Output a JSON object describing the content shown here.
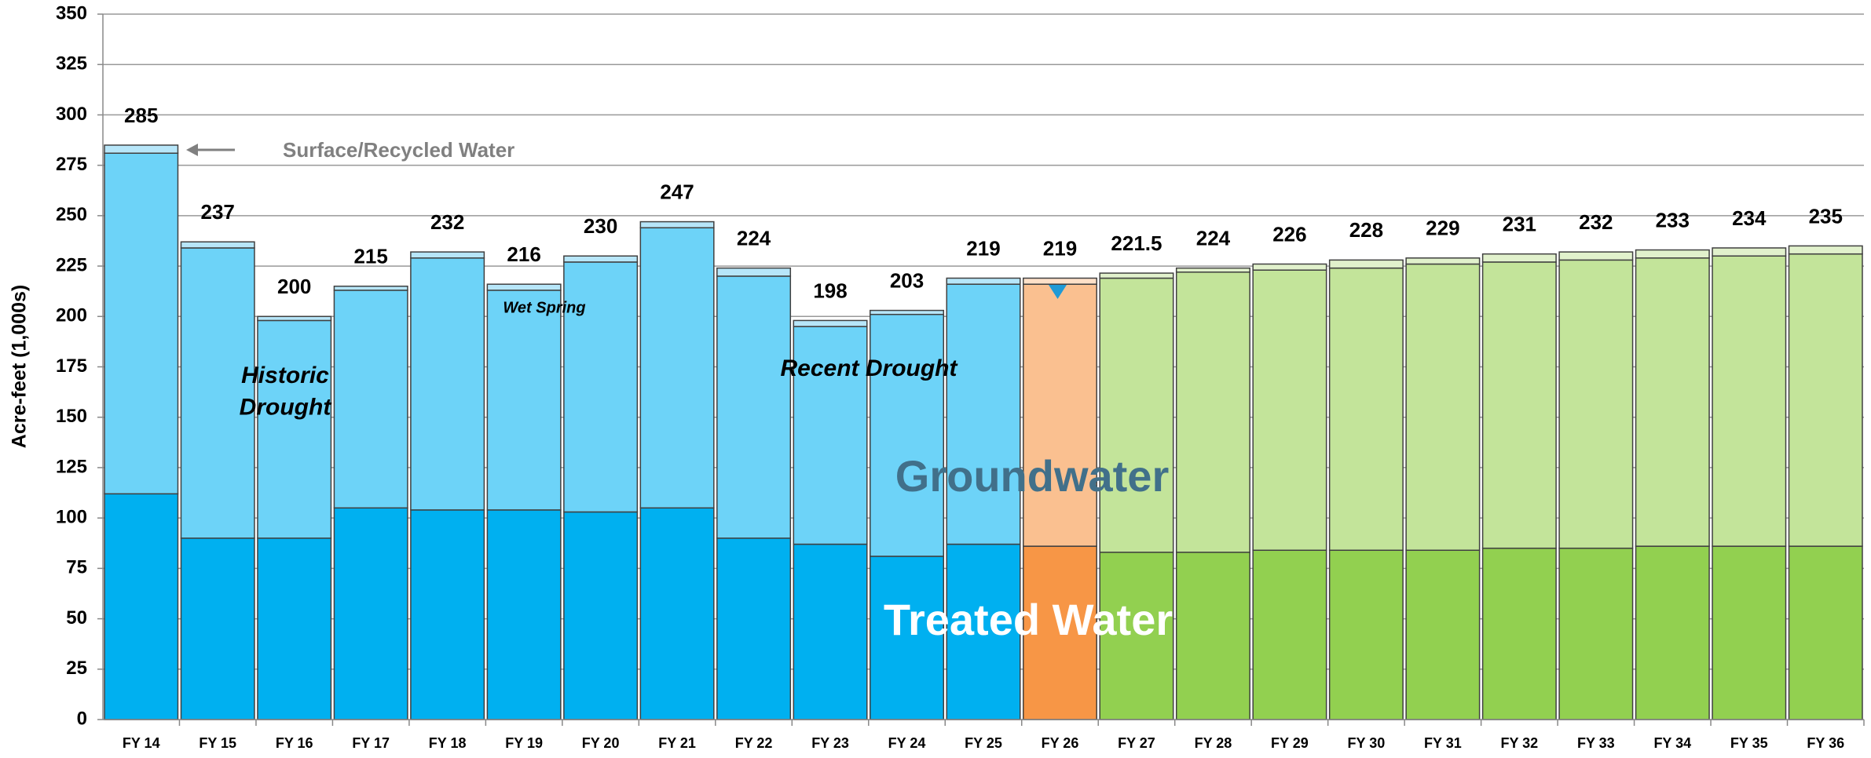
{
  "chart_data": {
    "type": "stacked-bar",
    "y_label": "Acre-feet (1,000s)",
    "categories": [
      "FY 14",
      "FY 15",
      "FY 16",
      "FY 17",
      "FY 18",
      "FY 19",
      "FY 20",
      "FY 21",
      "FY 22",
      "FY 23",
      "FY 24",
      "FY 25",
      "FY 26",
      "FY 27",
      "FY 28",
      "FY 29",
      "FY 30",
      "FY 31",
      "FY 32",
      "FY 33",
      "FY 34",
      "FY 35",
      "FY 36"
    ],
    "series": [
      {
        "name": "Treated Water",
        "colors": [
          "#00b0f0",
          "#00b0f0",
          "#00b0f0",
          "#00b0f0",
          "#00b0f0",
          "#00b0f0",
          "#00b0f0",
          "#00b0f0",
          "#00b0f0",
          "#00b0f0",
          "#00b0f0",
          "#00b0f0",
          "#f79646",
          "#92d050",
          "#92d050",
          "#92d050",
          "#92d050",
          "#92d050",
          "#92d050",
          "#92d050",
          "#92d050",
          "#92d050",
          "#92d050"
        ],
        "values": [
          112,
          90,
          90,
          105,
          104,
          104,
          103,
          105,
          90,
          87,
          81,
          87,
          86,
          83,
          83,
          84,
          84,
          84,
          85,
          85,
          86,
          86,
          86
        ]
      },
      {
        "name": "Groundwater",
        "colors": [
          "#6dd3f8",
          "#6dd3f8",
          "#6dd3f8",
          "#6dd3f8",
          "#6dd3f8",
          "#6dd3f8",
          "#6dd3f8",
          "#6dd3f8",
          "#6dd3f8",
          "#6dd3f8",
          "#6dd3f8",
          "#6dd3f8",
          "#fac090",
          "#c3e49a",
          "#c3e49a",
          "#c3e49a",
          "#c3e49a",
          "#c3e49a",
          "#c3e49a",
          "#c3e49a",
          "#c3e49a",
          "#c3e49a",
          "#c3e49a"
        ],
        "values": [
          169,
          144,
          108,
          108,
          125,
          109,
          124,
          139,
          130,
          108,
          120,
          129,
          130,
          136,
          139,
          139,
          140,
          142,
          142,
          143,
          143,
          144,
          145
        ]
      },
      {
        "name": "Surface/Recycled Water",
        "colors": [
          "#b7e6f9",
          "#b7e6f9",
          "#b7e6f9",
          "#b7e6f9",
          "#b7e6f9",
          "#b7e6f9",
          "#b7e6f9",
          "#b7e6f9",
          "#b7e6f9",
          "#b7e6f9",
          "#b7e6f9",
          "#b7e6f9",
          "#fde0c8",
          "#e1f1cc",
          "#e1f1cc",
          "#e1f1cc",
          "#e1f1cc",
          "#e1f1cc",
          "#e1f1cc",
          "#e1f1cc",
          "#e1f1cc",
          "#e1f1cc",
          "#e1f1cc"
        ],
        "values": [
          4,
          3,
          2,
          2,
          3,
          3,
          3,
          3,
          4,
          3,
          2,
          3,
          3,
          2.5,
          2,
          3,
          4,
          3,
          4,
          4,
          4,
          4,
          4
        ]
      }
    ],
    "totals": [
      285,
      237,
      200,
      215,
      232,
      216,
      230,
      247,
      224,
      198,
      203,
      219,
      219,
      221.5,
      224,
      226,
      228,
      229,
      231,
      232,
      233,
      234,
      235
    ],
    "annotations": [
      {
        "lines": [
          "Historic",
          "Drought"
        ]
      },
      {
        "lines": [
          "Wet Spring"
        ]
      },
      {
        "lines": [
          "Recent Drought"
        ]
      }
    ],
    "ylim": [
      0,
      350
    ],
    "yticks": [
      0,
      25,
      50,
      75,
      100,
      125,
      150,
      175,
      200,
      225,
      250,
      275,
      300,
      325,
      350
    ],
    "grid": true
  }
}
